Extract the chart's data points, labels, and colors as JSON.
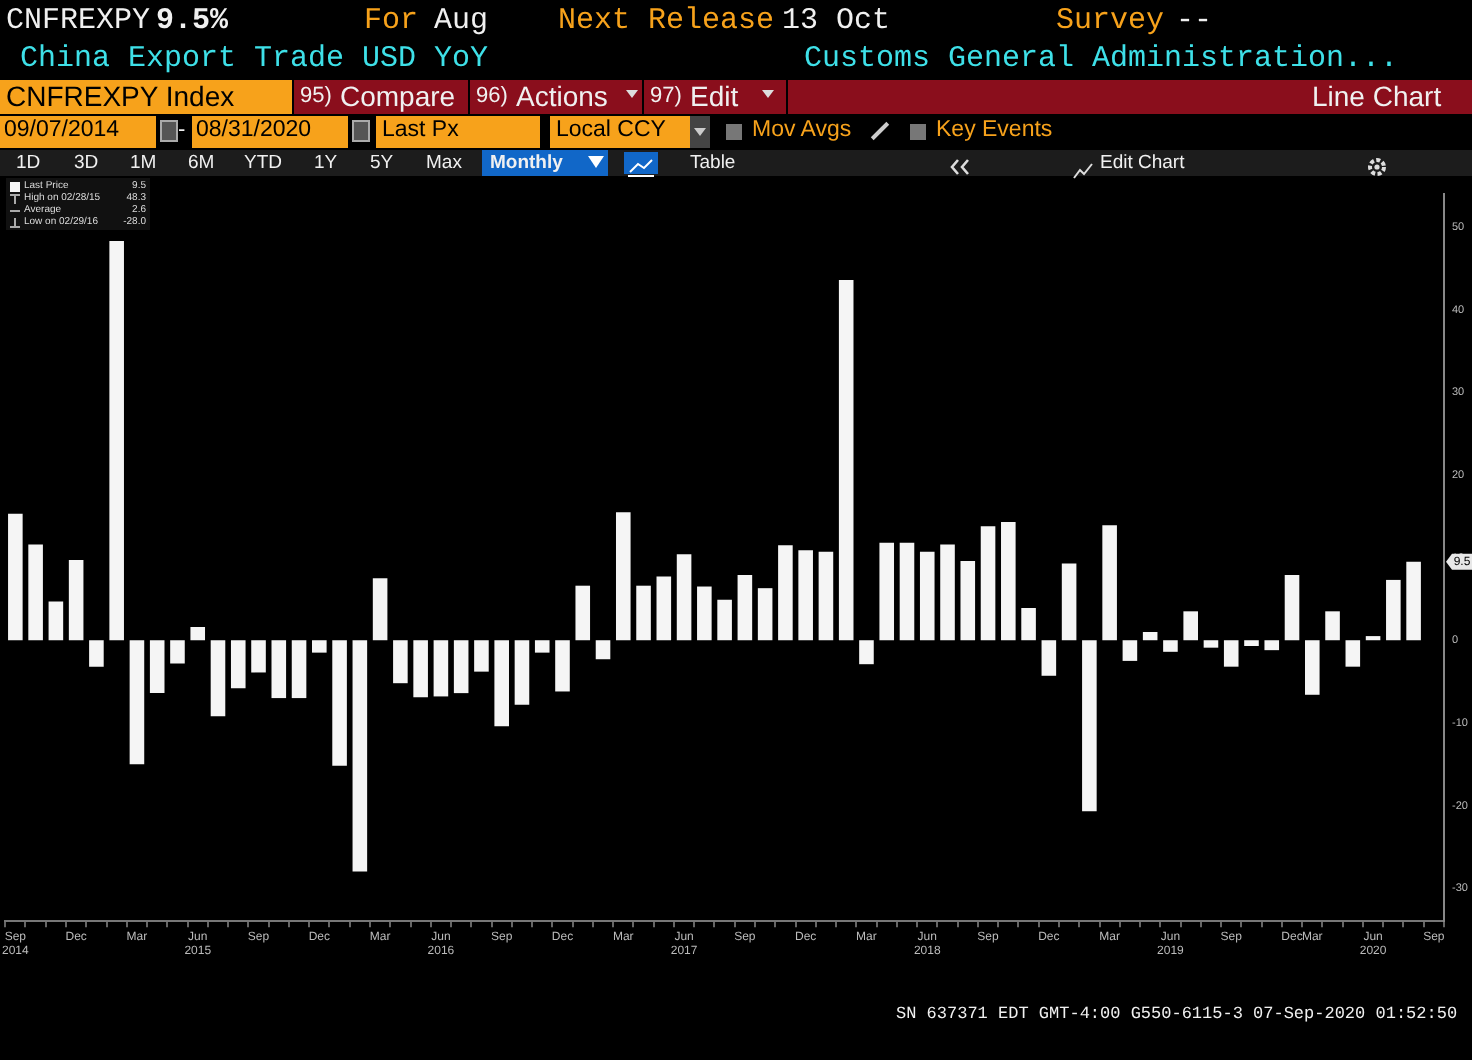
{
  "chart_data": {
    "type": "bar",
    "title": "China Export Trade USD YoY",
    "categories": [
      "Sep 2014",
      null,
      null,
      "Dec",
      null,
      null,
      "Mar",
      null,
      null,
      "Jun 2015",
      null,
      null,
      "Sep",
      null,
      null,
      "Dec",
      null,
      null,
      "Mar",
      null,
      null,
      "Jun 2016",
      null,
      null,
      "Sep",
      null,
      null,
      "Dec",
      null,
      null,
      "Mar",
      null,
      null,
      "Jun 2017",
      null,
      null,
      "Sep",
      null,
      null,
      "Dec",
      null,
      null,
      "Mar",
      null,
      null,
      "Jun 2018",
      null,
      null,
      "Sep",
      null,
      null,
      "Dec",
      null,
      null,
      "Mar",
      null,
      null,
      "Jun 2019",
      null,
      null,
      "Sep",
      null,
      null,
      "Dec",
      "Mar",
      null,
      null,
      "Jun 2020",
      null,
      null,
      "Sep"
    ],
    "series": [
      {
        "name": "Last Price",
        "color": "#f5f5f5",
        "values": [
          15.3,
          11.6,
          4.7,
          9.7,
          -3.2,
          48.3,
          -15.0,
          -6.4,
          -2.8,
          1.6,
          -9.2,
          -5.8,
          -3.9,
          -7.0,
          -7.0,
          -1.5,
          -15.2,
          -28.0,
          7.5,
          -5.2,
          -6.9,
          -6.8,
          -6.4,
          -3.8,
          -10.4,
          -7.8,
          -1.5,
          -6.2,
          6.6,
          -2.3,
          15.5,
          6.6,
          7.7,
          10.4,
          6.5,
          4.9,
          7.9,
          6.3,
          11.5,
          10.9,
          10.7,
          43.6,
          -2.9,
          11.8,
          11.8,
          10.7,
          11.6,
          9.6,
          13.8,
          14.3,
          3.9,
          -4.3,
          9.3,
          -20.7,
          13.9,
          -2.5,
          1.0,
          -1.4,
          3.5,
          -0.9,
          -3.2,
          -0.7,
          -1.2,
          7.9,
          -6.6,
          3.5,
          -3.2,
          0.5,
          7.3,
          9.5,
          null
        ]
      }
    ],
    "ylim": [
      -34,
      54
    ],
    "yticks": [
      -30,
      -20,
      -10,
      0,
      10,
      20,
      30,
      40,
      50
    ],
    "legend": "top left",
    "annotations": [
      "CNFREXPY",
      "9.5%",
      "For",
      "Aug",
      "Next Release",
      "13 Oct",
      "Survey",
      "--",
      "Customs General Administration...",
      "CNFREXPY Index",
      "95)",
      "Compare",
      "96)",
      "Actions",
      "97)",
      "Edit",
      "Line Chart",
      "09/07/2014",
      "-",
      "08/31/2020",
      "Last Px",
      "Local CCY",
      "Mov Avgs",
      "Key Events",
      "1D",
      "3D",
      "1M",
      "6M",
      "YTD",
      "1Y",
      "5Y",
      "Max",
      "Monthly",
      "Table",
      "Edit Chart",
      "9.5",
      "High on 02/28/15",
      "48.3",
      "Average",
      "2.6",
      "Low on 02/29/16",
      "-28.0",
      "SN 637371 EDT  GMT-4:00 G550-6115-3 07-Sep-2020 01:52:50",
      {
        "text": "9.5",
        "y": 9.5
      }
    ]
  }
}
